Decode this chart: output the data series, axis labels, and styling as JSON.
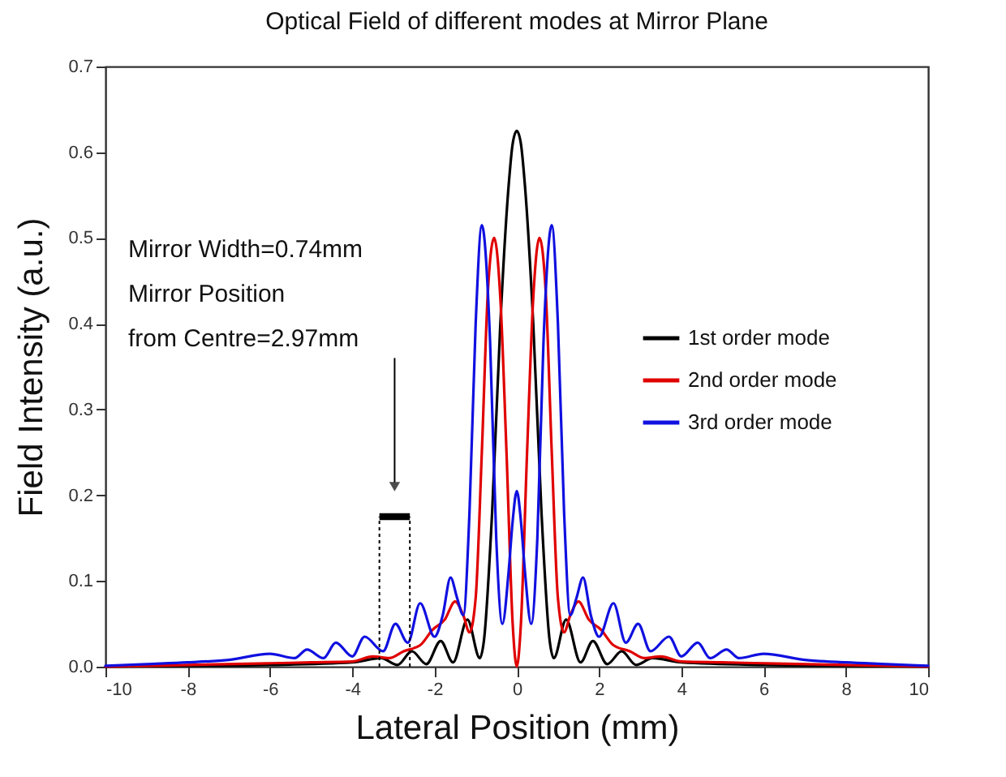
{
  "chart_data": {
    "type": "line",
    "title": "Optical Field of different modes at Mirror Plane",
    "xlabel": "Lateral Position (mm)",
    "ylabel": "Field Intensity (a.u.)",
    "xlim": [
      -10,
      10
    ],
    "xticks": [
      -10,
      -8,
      -6,
      -4,
      -2,
      0,
      2,
      4,
      6,
      8,
      10
    ],
    "ylim": [
      0,
      0.7
    ],
    "yticks": [
      {
        "value": 0,
        "label": "0.0"
      },
      0.1,
      0.2,
      0.3,
      0.4,
      0.5,
      0.6,
      0.7
    ],
    "grid": false,
    "legend": "right",
    "marker": "none",
    "line_style": "solid",
    "annotations": [
      "Mirror Width=0.74mm",
      "Mirror Position",
      "from Centre=2.97mm"
    ],
    "ref_lines": [
      {
        "axis": "x",
        "value": -3.34,
        "color": "#000000",
        "line_style": "dotted"
      },
      {
        "axis": "x",
        "value": -2.6,
        "color": "#000000",
        "line_style": "dotted"
      }
    ],
    "series": [
      {
        "name": "1st order mode",
        "color": "#000000",
        "x": [
          -10,
          -8,
          -6,
          -4,
          -3.3,
          -2.9,
          -2.55,
          -2.2,
          -1.85,
          -1.55,
          -1.2,
          -0.9,
          -0.8,
          -0.6,
          -0.4,
          -0.2,
          -0.1,
          0,
          0.1,
          0.2,
          0.4,
          0.6,
          0.8,
          0.9,
          1.2,
          1.55,
          1.85,
          2.2,
          2.55,
          2.9,
          3.3,
          4,
          6,
          8,
          10
        ],
        "values": [
          0,
          0.001,
          0.002,
          0.005,
          0.01,
          0.002,
          0.018,
          0.003,
          0.03,
          0.005,
          0.055,
          0.01,
          0.03,
          0.18,
          0.4,
          0.56,
          0.61,
          0.625,
          0.61,
          0.56,
          0.4,
          0.18,
          0.03,
          0.01,
          0.055,
          0.005,
          0.03,
          0.003,
          0.018,
          0.002,
          0.01,
          0.005,
          0.002,
          0.001,
          0
        ]
      },
      {
        "name": "2nd order mode",
        "color": "#e00000",
        "x": [
          -10,
          -8,
          -6,
          -5,
          -4,
          -3.5,
          -3.1,
          -2.75,
          -2.35,
          -2.05,
          -1.75,
          -1.5,
          -1.3,
          -1.15,
          -1,
          -0.85,
          -0.7,
          -0.55,
          -0.4,
          -0.25,
          -0.1,
          0,
          0.1,
          0.25,
          0.4,
          0.55,
          0.7,
          0.85,
          1,
          1.15,
          1.3,
          1.5,
          1.75,
          2.05,
          2.35,
          2.75,
          3.1,
          3.5,
          4,
          5,
          6,
          8,
          10
        ],
        "values": [
          0,
          0.002,
          0.004,
          0.005,
          0.006,
          0.012,
          0.01,
          0.018,
          0.025,
          0.043,
          0.055,
          0.076,
          0.06,
          0.04,
          0.08,
          0.25,
          0.44,
          0.5,
          0.43,
          0.25,
          0.05,
          0,
          0.05,
          0.25,
          0.43,
          0.5,
          0.44,
          0.25,
          0.08,
          0.04,
          0.06,
          0.076,
          0.055,
          0.043,
          0.025,
          0.018,
          0.01,
          0.012,
          0.006,
          0.005,
          0.004,
          0.002,
          0
        ]
      },
      {
        "name": "3rd order mode",
        "color": "#1010e0",
        "x": [
          -10,
          -9,
          -8,
          -7,
          -6,
          -5.4,
          -5.1,
          -4.7,
          -4.4,
          -4,
          -3.7,
          -3.25,
          -2.95,
          -2.65,
          -2.35,
          -2,
          -1.8,
          -1.61,
          -1.45,
          -1.3,
          -1.15,
          -1,
          -0.85,
          -0.65,
          -0.5,
          -0.35,
          -0.2,
          -0.1,
          0,
          0.1,
          0.2,
          0.35,
          0.5,
          0.65,
          0.85,
          1,
          1.15,
          1.3,
          1.45,
          1.61,
          1.8,
          2,
          2.35,
          2.65,
          2.95,
          3.25,
          3.7,
          4,
          4.4,
          4.7,
          5.1,
          5.4,
          6,
          7,
          8,
          9,
          10
        ],
        "values": [
          0.001,
          0.003,
          0.005,
          0.008,
          0.015,
          0.01,
          0.02,
          0.01,
          0.028,
          0.012,
          0.035,
          0.018,
          0.05,
          0.028,
          0.074,
          0.035,
          0.06,
          0.104,
          0.08,
          0.06,
          0.18,
          0.4,
          0.515,
          0.38,
          0.15,
          0.05,
          0.11,
          0.17,
          0.205,
          0.17,
          0.11,
          0.05,
          0.15,
          0.38,
          0.515,
          0.4,
          0.18,
          0.06,
          0.08,
          0.104,
          0.06,
          0.035,
          0.074,
          0.028,
          0.05,
          0.018,
          0.035,
          0.012,
          0.028,
          0.01,
          0.02,
          0.01,
          0.015,
          0.008,
          0.005,
          0.003,
          0.001
        ]
      }
    ]
  }
}
